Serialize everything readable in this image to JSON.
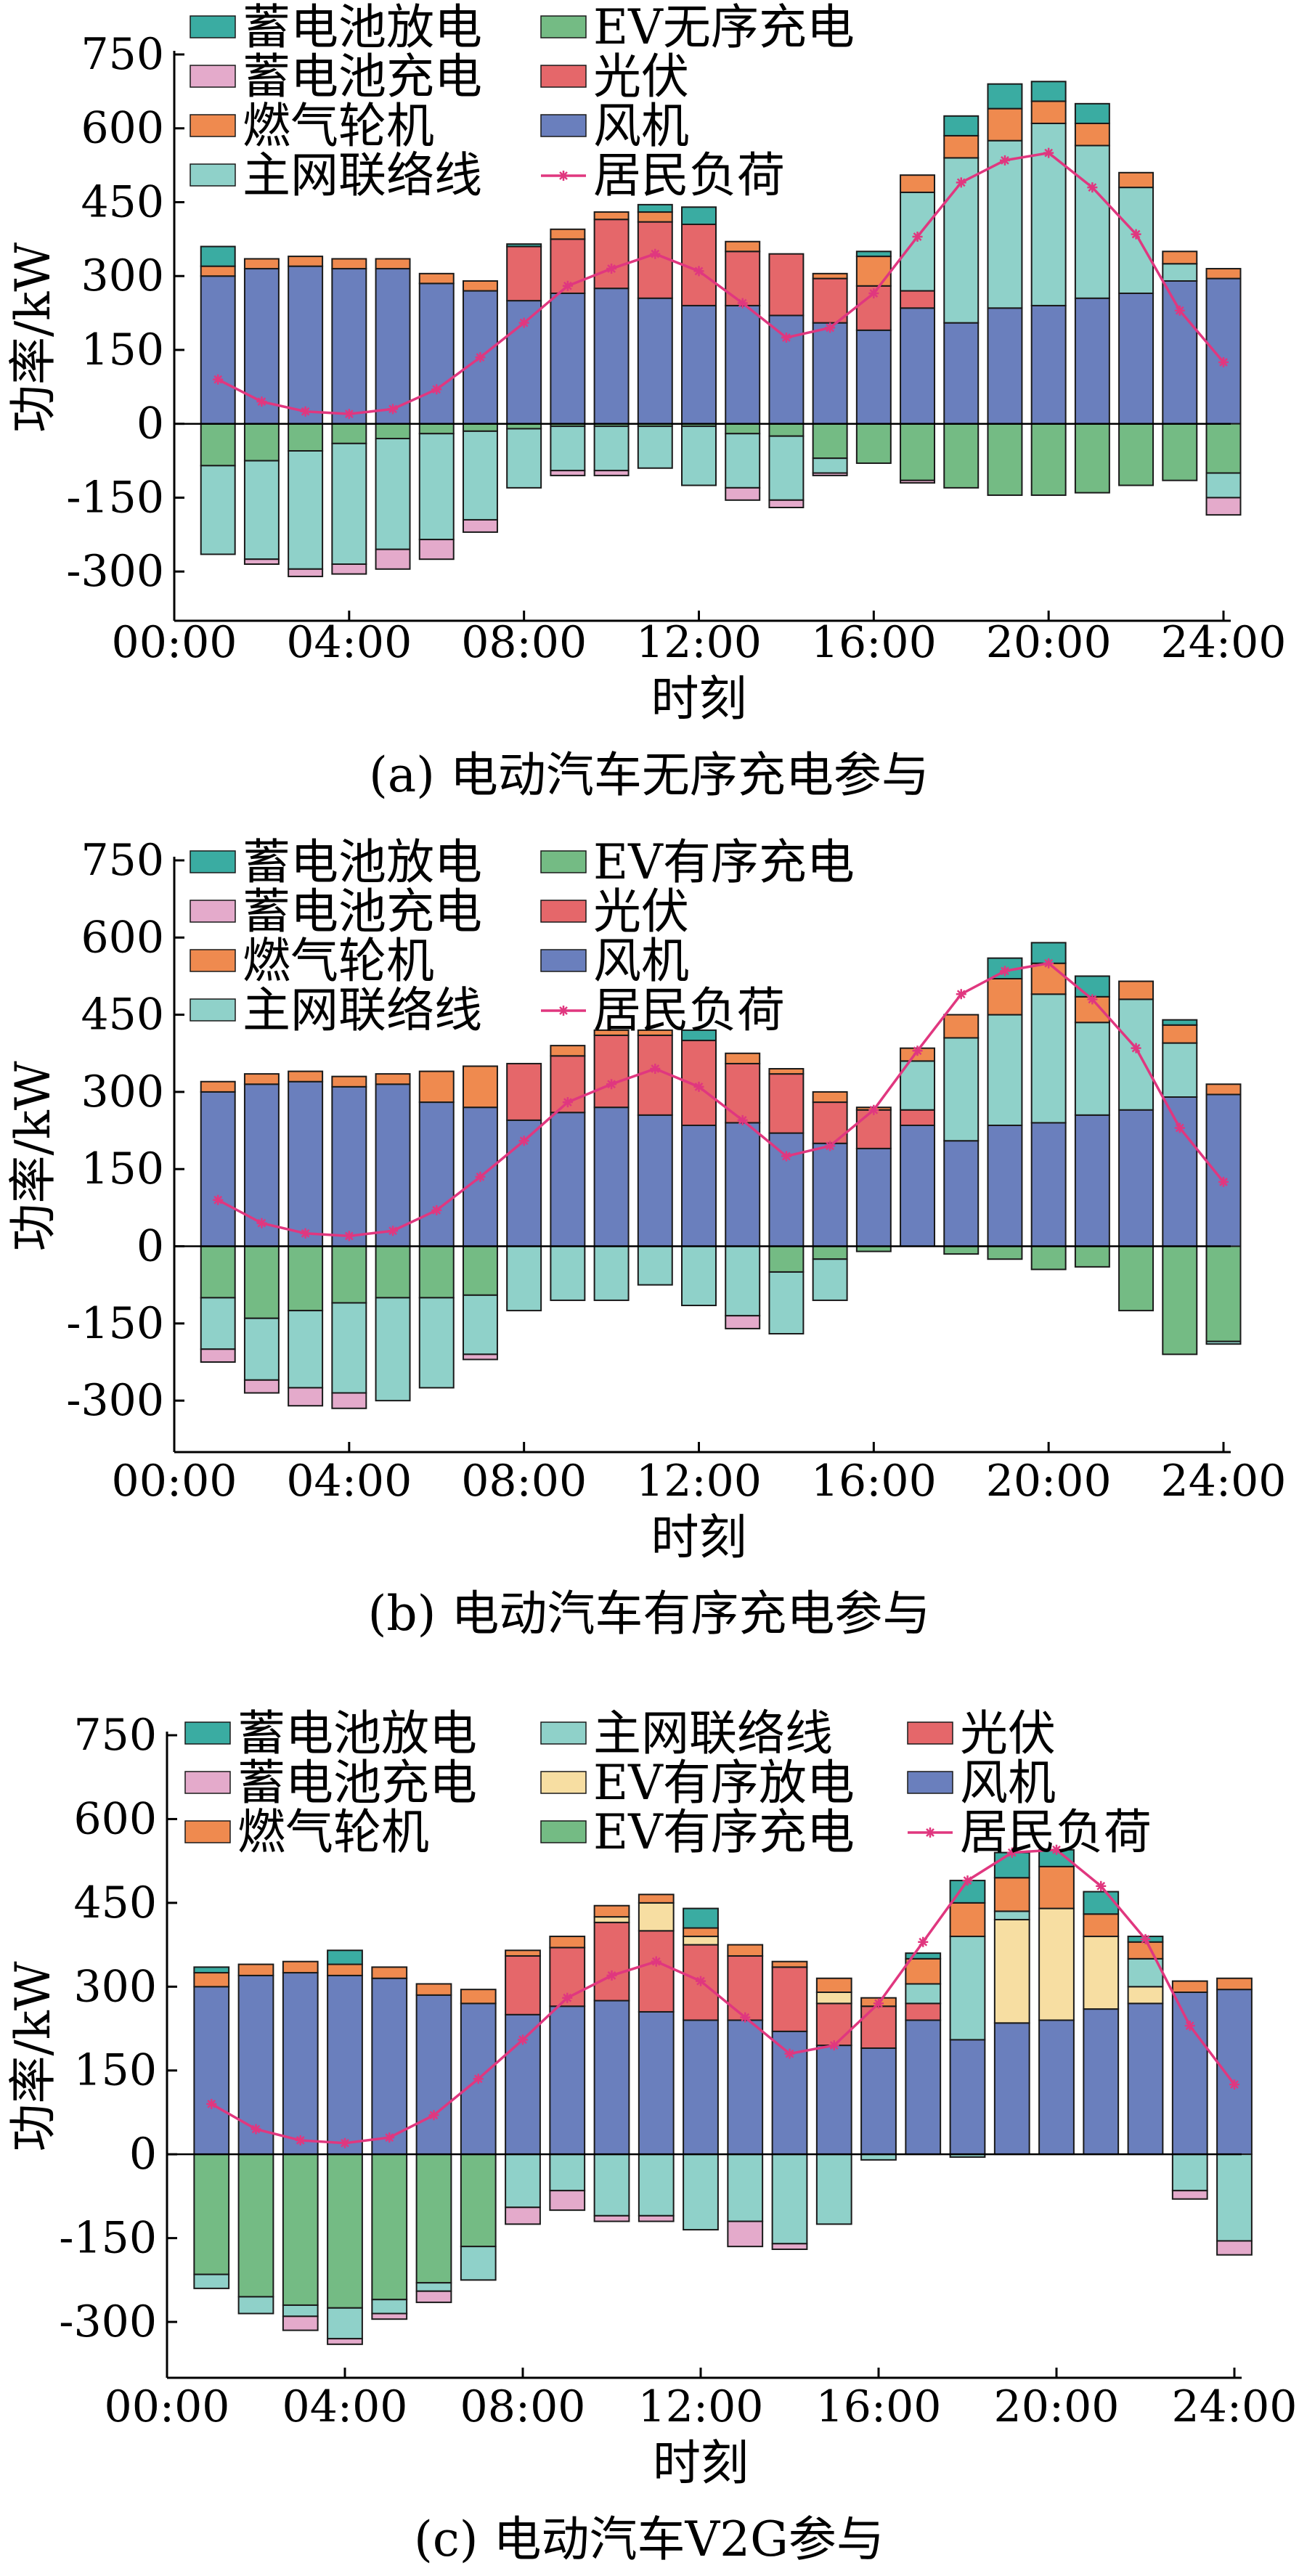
{
  "chart_data": [
    {
      "type": "bar",
      "caption": "(a) 电动汽车无序充电参与",
      "xlabel": "时刻",
      "ylabel": "功率/kW",
      "x_ticks": [
        "00:00",
        "04:00",
        "08:00",
        "12:00",
        "16:00",
        "20:00",
        "24:00"
      ],
      "y_ticks": [
        750,
        600,
        450,
        300,
        150,
        0,
        -150,
        -300
      ],
      "ylim": [
        -400,
        750
      ],
      "xlim": [
        0,
        24
      ],
      "hours": [
        1,
        2,
        3,
        4,
        5,
        6,
        7,
        8,
        9,
        10,
        11,
        12,
        13,
        14,
        15,
        16,
        17,
        18,
        19,
        20,
        21,
        22,
        23,
        24
      ],
      "legend": [
        {
          "name": "蓄电池放电",
          "color": "#3aaca2",
          "kind": "bar"
        },
        {
          "name": "EV无序充电",
          "color": "#74bb84",
          "kind": "bar"
        },
        {
          "name": "蓄电池充电",
          "color": "#e4aacb",
          "kind": "bar"
        },
        {
          "name": "光伏",
          "color": "#e5676a",
          "kind": "bar"
        },
        {
          "name": "燃气轮机",
          "color": "#ef8a4f",
          "kind": "bar"
        },
        {
          "name": "风机",
          "color": "#6a7fbd",
          "kind": "bar"
        },
        {
          "name": "主网联络线",
          "color": "#8fd1c9",
          "kind": "bar"
        },
        {
          "name": "居民负荷",
          "color": "#e0377f",
          "kind": "line"
        }
      ],
      "legend_columns": 2,
      "stack_order_pos": [
        "风机",
        "光伏",
        "主网联络线",
        "燃气轮机",
        "蓄电池放电"
      ],
      "stack_order_neg": [
        "EV无序充电",
        "主网联络线",
        "蓄电池充电"
      ],
      "series": [
        {
          "name": "风机",
          "sign": "pos",
          "values": [
            300,
            315,
            320,
            315,
            315,
            285,
            270,
            250,
            265,
            275,
            255,
            240,
            240,
            220,
            205,
            190,
            235,
            205,
            235,
            240,
            255,
            265,
            290,
            295
          ]
        },
        {
          "name": "光伏",
          "sign": "pos",
          "values": [
            0,
            0,
            0,
            0,
            0,
            0,
            0,
            110,
            110,
            140,
            155,
            165,
            110,
            125,
            90,
            90,
            35,
            0,
            0,
            0,
            0,
            0,
            0,
            0
          ]
        },
        {
          "name": "主网联络线",
          "sign": "pos",
          "values": [
            0,
            0,
            0,
            0,
            0,
            0,
            0,
            0,
            0,
            0,
            0,
            0,
            0,
            0,
            0,
            0,
            200,
            335,
            340,
            370,
            310,
            215,
            35,
            0
          ]
        },
        {
          "name": "燃气轮机",
          "sign": "pos",
          "values": [
            20,
            20,
            20,
            20,
            20,
            20,
            20,
            0,
            20,
            15,
            20,
            0,
            20,
            0,
            10,
            60,
            35,
            45,
            65,
            45,
            45,
            30,
            25,
            20
          ]
        },
        {
          "name": "蓄电池放电",
          "sign": "pos",
          "values": [
            40,
            0,
            0,
            0,
            0,
            0,
            0,
            5,
            0,
            0,
            15,
            35,
            0,
            0,
            0,
            10,
            0,
            40,
            50,
            40,
            40,
            0,
            0,
            0
          ]
        },
        {
          "name": "EV无序充电",
          "sign": "neg",
          "values": [
            -85,
            -75,
            -55,
            -40,
            -30,
            -20,
            -15,
            -10,
            -5,
            -5,
            -5,
            -5,
            -20,
            -25,
            -70,
            -80,
            -115,
            -130,
            -145,
            -145,
            -140,
            -125,
            -115,
            -100
          ]
        },
        {
          "name": "主网联络线",
          "sign": "neg",
          "values": [
            -180,
            -200,
            -240,
            -245,
            -225,
            -215,
            -180,
            -120,
            -90,
            -90,
            -85,
            -120,
            -110,
            -130,
            -30,
            0,
            0,
            0,
            0,
            0,
            0,
            0,
            0,
            -50
          ]
        },
        {
          "name": "蓄电池充电",
          "sign": "neg",
          "values": [
            0,
            -10,
            -15,
            -20,
            -40,
            -40,
            -25,
            0,
            -10,
            -10,
            0,
            0,
            -25,
            -15,
            -5,
            0,
            -5,
            0,
            0,
            0,
            0,
            0,
            0,
            -35
          ]
        }
      ],
      "line": {
        "name": "居民负荷",
        "values": [
          90,
          45,
          25,
          20,
          30,
          70,
          135,
          205,
          280,
          315,
          345,
          310,
          245,
          175,
          195,
          265,
          380,
          490,
          535,
          550,
          480,
          385,
          230,
          125
        ]
      }
    },
    {
      "type": "bar",
      "caption": "(b) 电动汽车有序充电参与",
      "xlabel": "时刻",
      "ylabel": "功率/kW",
      "x_ticks": [
        "00:00",
        "04:00",
        "08:00",
        "12:00",
        "16:00",
        "20:00",
        "24:00"
      ],
      "y_ticks": [
        750,
        600,
        450,
        300,
        150,
        0,
        -150,
        -300
      ],
      "ylim": [
        -400,
        750
      ],
      "xlim": [
        0,
        24
      ],
      "hours": [
        1,
        2,
        3,
        4,
        5,
        6,
        7,
        8,
        9,
        10,
        11,
        12,
        13,
        14,
        15,
        16,
        17,
        18,
        19,
        20,
        21,
        22,
        23,
        24
      ],
      "legend": [
        {
          "name": "蓄电池放电",
          "color": "#3aaca2",
          "kind": "bar"
        },
        {
          "name": "EV有序充电",
          "color": "#74bb84",
          "kind": "bar"
        },
        {
          "name": "蓄电池充电",
          "color": "#e4aacb",
          "kind": "bar"
        },
        {
          "name": "光伏",
          "color": "#e5676a",
          "kind": "bar"
        },
        {
          "name": "燃气轮机",
          "color": "#ef8a4f",
          "kind": "bar"
        },
        {
          "name": "风机",
          "color": "#6a7fbd",
          "kind": "bar"
        },
        {
          "name": "主网联络线",
          "color": "#8fd1c9",
          "kind": "bar"
        },
        {
          "name": "居民负荷",
          "color": "#e0377f",
          "kind": "line"
        }
      ],
      "legend_columns": 2,
      "stack_order_pos": [
        "风机",
        "光伏",
        "主网联络线",
        "燃气轮机",
        "蓄电池放电"
      ],
      "stack_order_neg": [
        "EV有序充电",
        "主网联络线",
        "蓄电池充电"
      ],
      "series": [
        {
          "name": "风机",
          "sign": "pos",
          "values": [
            300,
            315,
            320,
            310,
            315,
            280,
            270,
            245,
            260,
            270,
            255,
            235,
            240,
            220,
            200,
            190,
            235,
            205,
            235,
            240,
            255,
            265,
            290,
            295
          ]
        },
        {
          "name": "光伏",
          "sign": "pos",
          "values": [
            0,
            0,
            0,
            0,
            0,
            0,
            0,
            110,
            110,
            140,
            155,
            165,
            115,
            115,
            80,
            75,
            30,
            0,
            0,
            0,
            0,
            0,
            0,
            0
          ]
        },
        {
          "name": "主网联络线",
          "sign": "pos",
          "values": [
            0,
            0,
            0,
            0,
            0,
            0,
            0,
            0,
            0,
            0,
            0,
            0,
            0,
            0,
            0,
            0,
            95,
            200,
            215,
            250,
            180,
            215,
            105,
            0
          ]
        },
        {
          "name": "燃气轮机",
          "sign": "pos",
          "values": [
            20,
            20,
            20,
            20,
            20,
            60,
            80,
            0,
            20,
            10,
            10,
            0,
            20,
            10,
            20,
            5,
            25,
            45,
            70,
            60,
            50,
            35,
            35,
            20
          ]
        },
        {
          "name": "蓄电池放电",
          "sign": "pos",
          "values": [
            0,
            0,
            0,
            0,
            0,
            0,
            0,
            0,
            0,
            0,
            0,
            20,
            0,
            0,
            0,
            0,
            0,
            0,
            40,
            40,
            40,
            0,
            10,
            0
          ]
        },
        {
          "name": "EV有序充电",
          "sign": "neg",
          "values": [
            -100,
            -140,
            -125,
            -110,
            -100,
            -100,
            -95,
            0,
            0,
            0,
            0,
            0,
            0,
            -50,
            -25,
            -10,
            0,
            -15,
            -25,
            -45,
            -40,
            -125,
            -210,
            -185
          ]
        },
        {
          "name": "主网联络线",
          "sign": "neg",
          "values": [
            -100,
            -120,
            -150,
            -175,
            -200,
            -175,
            -115,
            -125,
            -105,
            -105,
            -75,
            -115,
            -135,
            -120,
            -80,
            0,
            0,
            0,
            0,
            0,
            0,
            0,
            0,
            -5
          ]
        },
        {
          "name": "蓄电池充电",
          "sign": "neg",
          "values": [
            -25,
            -25,
            -35,
            -30,
            0,
            0,
            -10,
            0,
            0,
            0,
            0,
            0,
            -25,
            0,
            0,
            0,
            0,
            0,
            0,
            0,
            0,
            0,
            0,
            0
          ]
        }
      ],
      "line": {
        "name": "居民负荷",
        "values": [
          90,
          45,
          25,
          20,
          30,
          70,
          135,
          205,
          280,
          315,
          345,
          310,
          245,
          175,
          195,
          265,
          380,
          490,
          535,
          550,
          480,
          385,
          230,
          125
        ]
      }
    },
    {
      "type": "bar",
      "caption": "(c) 电动汽车V2G参与",
      "xlabel": "时刻",
      "ylabel": "功率/kW",
      "x_ticks": [
        "00:00",
        "04:00",
        "08:00",
        "12:00",
        "16:00",
        "20:00",
        "24:00"
      ],
      "y_ticks": [
        750,
        600,
        450,
        300,
        150,
        0,
        -150,
        -300
      ],
      "ylim": [
        -400,
        750
      ],
      "xlim": [
        0,
        24
      ],
      "hours": [
        1,
        2,
        3,
        4,
        5,
        6,
        7,
        8,
        9,
        10,
        11,
        12,
        13,
        14,
        15,
        16,
        17,
        18,
        19,
        20,
        21,
        22,
        23,
        24
      ],
      "legend": [
        {
          "name": "蓄电池放电",
          "color": "#3aaca2",
          "kind": "bar"
        },
        {
          "name": "主网联络线",
          "color": "#8fd1c9",
          "kind": "bar"
        },
        {
          "name": "光伏",
          "color": "#e5676a",
          "kind": "bar"
        },
        {
          "name": "蓄电池充电",
          "color": "#e4aacb",
          "kind": "bar"
        },
        {
          "name": "EV有序放电",
          "color": "#f7dea2",
          "kind": "bar"
        },
        {
          "name": "风机",
          "color": "#6a7fbd",
          "kind": "bar"
        },
        {
          "name": "燃气轮机",
          "color": "#ef8a4f",
          "kind": "bar"
        },
        {
          "name": "EV有序充电",
          "color": "#74bb84",
          "kind": "bar"
        },
        {
          "name": "居民负荷",
          "color": "#e0377f",
          "kind": "line"
        }
      ],
      "legend_columns": 3,
      "stack_order_pos": [
        "风机",
        "光伏",
        "EV有序放电",
        "主网联络线",
        "燃气轮机",
        "蓄电池放电"
      ],
      "stack_order_neg": [
        "EV有序充电",
        "主网联络线",
        "蓄电池充电"
      ],
      "series": [
        {
          "name": "风机",
          "sign": "pos",
          "values": [
            300,
            320,
            325,
            320,
            315,
            285,
            270,
            250,
            265,
            275,
            255,
            240,
            240,
            220,
            195,
            190,
            240,
            205,
            235,
            240,
            260,
            270,
            290,
            295
          ]
        },
        {
          "name": "光伏",
          "sign": "pos",
          "values": [
            0,
            0,
            0,
            0,
            0,
            0,
            0,
            105,
            105,
            140,
            145,
            135,
            115,
            115,
            75,
            75,
            30,
            0,
            0,
            0,
            0,
            0,
            0,
            0
          ]
        },
        {
          "name": "EV有序放电",
          "sign": "pos",
          "values": [
            0,
            0,
            0,
            0,
            0,
            0,
            0,
            0,
            0,
            10,
            50,
            15,
            0,
            0,
            20,
            0,
            0,
            0,
            185,
            200,
            130,
            30,
            0,
            0
          ]
        },
        {
          "name": "主网联络线",
          "sign": "pos",
          "values": [
            0,
            0,
            0,
            0,
            0,
            0,
            0,
            0,
            0,
            0,
            0,
            0,
            0,
            0,
            0,
            0,
            35,
            185,
            15,
            0,
            0,
            50,
            0,
            0
          ]
        },
        {
          "name": "燃气轮机",
          "sign": "pos",
          "values": [
            25,
            20,
            20,
            20,
            20,
            20,
            25,
            10,
            20,
            20,
            15,
            15,
            20,
            10,
            25,
            15,
            45,
            60,
            60,
            75,
            40,
            30,
            20,
            20
          ]
        },
        {
          "name": "蓄电池放电",
          "sign": "pos",
          "values": [
            10,
            0,
            0,
            25,
            0,
            0,
            0,
            0,
            0,
            0,
            0,
            35,
            0,
            0,
            0,
            0,
            10,
            40,
            45,
            30,
            40,
            10,
            0,
            0
          ]
        },
        {
          "name": "EV有序充电",
          "sign": "neg",
          "values": [
            -215,
            -255,
            -270,
            -275,
            -260,
            -230,
            -165,
            0,
            0,
            0,
            0,
            0,
            0,
            0,
            0,
            0,
            0,
            0,
            0,
            0,
            0,
            0,
            0,
            0
          ]
        },
        {
          "name": "主网联络线",
          "sign": "neg",
          "values": [
            -25,
            -30,
            -20,
            -55,
            -25,
            -15,
            -60,
            -95,
            -65,
            -110,
            -110,
            -135,
            -120,
            -160,
            -125,
            -10,
            0,
            -5,
            0,
            0,
            0,
            0,
            -65,
            -155
          ]
        },
        {
          "name": "蓄电池充电",
          "sign": "neg",
          "values": [
            0,
            0,
            -25,
            -10,
            -10,
            -20,
            0,
            -30,
            -35,
            -10,
            -10,
            0,
            -45,
            -10,
            0,
            0,
            0,
            0,
            0,
            0,
            0,
            0,
            -15,
            -25
          ]
        }
      ],
      "line": {
        "name": "居民负荷",
        "values": [
          90,
          45,
          25,
          20,
          30,
          70,
          135,
          205,
          280,
          320,
          345,
          310,
          245,
          180,
          195,
          270,
          380,
          490,
          540,
          545,
          480,
          385,
          230,
          125
        ]
      }
    }
  ]
}
